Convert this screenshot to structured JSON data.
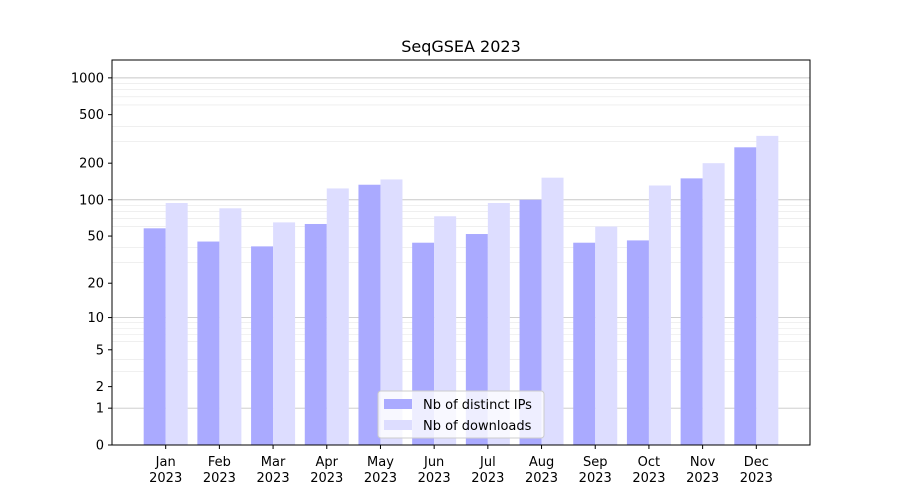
{
  "chart_data": {
    "type": "bar",
    "title": "SeqGSEA 2023",
    "xlabel": "",
    "ylabel": "",
    "yscale": "symlog",
    "ylim": [
      0,
      1400
    ],
    "yticks": [
      0,
      1,
      2,
      5,
      10,
      20,
      50,
      100,
      200,
      500,
      1000
    ],
    "ytick_labels": [
      "0",
      "1",
      "2",
      "5",
      "10",
      "20",
      "50",
      "100",
      "200",
      "500",
      "1000"
    ],
    "grid": true,
    "legend_position": "bottom-center",
    "categories": [
      [
        "Jan",
        "2023"
      ],
      [
        "Feb",
        "2023"
      ],
      [
        "Mar",
        "2023"
      ],
      [
        "Apr",
        "2023"
      ],
      [
        "May",
        "2023"
      ],
      [
        "Jun",
        "2023"
      ],
      [
        "Jul",
        "2023"
      ],
      [
        "Aug",
        "2023"
      ],
      [
        "Sep",
        "2023"
      ],
      [
        "Oct",
        "2023"
      ],
      [
        "Nov",
        "2023"
      ],
      [
        "Dec",
        "2023"
      ]
    ],
    "series": [
      {
        "name": "Nb of distinct IPs",
        "color": "#aaaaff",
        "values": [
          58,
          45,
          41,
          63,
          133,
          44,
          52,
          100,
          44,
          46,
          150,
          270
        ]
      },
      {
        "name": "Nb of downloads",
        "color": "#ddddff",
        "values": [
          94,
          85,
          65,
          124,
          147,
          73,
          94,
          152,
          60,
          131,
          200,
          335
        ]
      }
    ]
  }
}
